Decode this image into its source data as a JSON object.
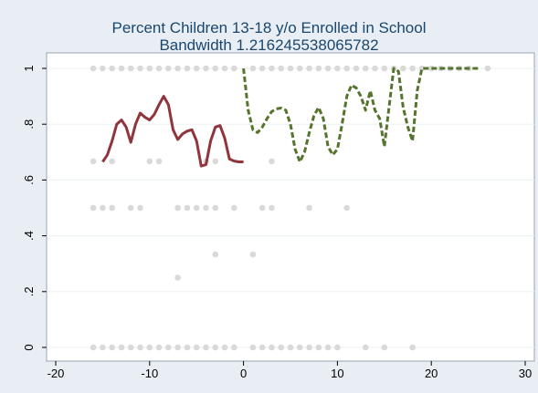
{
  "chart_data": {
    "type": "scatter",
    "title": "Percent Children 13-18 y/o Enrolled in School",
    "subtitle": "Bandwidth 1.216245538065782",
    "xlabel": "",
    "ylabel": "",
    "xlim": [
      -20,
      30
    ],
    "ylim": [
      0,
      1
    ],
    "xticks": [
      -20,
      -10,
      0,
      10,
      20,
      30
    ],
    "yticks": [
      0,
      0.2,
      0.4,
      0.6,
      0.8,
      1
    ],
    "xtick_labels": [
      "-20",
      "-10",
      "0",
      "10",
      "20",
      "30"
    ],
    "ytick_labels": [
      "0",
      ".2",
      ".4",
      ".6",
      ".8",
      "1"
    ],
    "grid": true,
    "legend": "none",
    "colors": {
      "background": "#e8eef3",
      "plot_area": "#ffffff",
      "grid": "#eaf2f3",
      "points": "#d9d9d9",
      "left_fit": "#90353b",
      "right_fit": "#55752f",
      "title": "#1a476f"
    },
    "series": [
      {
        "kind": "points",
        "points": [
          [
            -16,
            1
          ],
          [
            -15,
            1
          ],
          [
            -14,
            1
          ],
          [
            -13,
            1
          ],
          [
            -12,
            1
          ],
          [
            -11,
            1
          ],
          [
            -10,
            1
          ],
          [
            -9,
            1
          ],
          [
            -8,
            1
          ],
          [
            -7,
            1
          ],
          [
            -6,
            1
          ],
          [
            -5,
            1
          ],
          [
            -4,
            1
          ],
          [
            -3,
            1
          ],
          [
            -2,
            1
          ],
          [
            -1,
            1
          ],
          [
            1,
            1
          ],
          [
            2,
            1
          ],
          [
            3,
            1
          ],
          [
            4,
            1
          ],
          [
            5,
            1
          ],
          [
            6,
            1
          ],
          [
            7,
            1
          ],
          [
            8,
            1
          ],
          [
            9,
            1
          ],
          [
            10,
            1
          ],
          [
            11,
            1
          ],
          [
            12,
            1
          ],
          [
            13,
            1
          ],
          [
            14,
            1
          ],
          [
            15,
            1
          ],
          [
            16,
            1
          ],
          [
            17,
            1
          ],
          [
            18,
            1
          ],
          [
            19,
            1
          ],
          [
            20,
            1
          ],
          [
            21,
            1
          ],
          [
            22,
            1
          ],
          [
            23,
            1
          ],
          [
            24,
            1
          ],
          [
            26,
            1
          ],
          [
            -16,
            0.667
          ],
          [
            -14,
            0.667
          ],
          [
            -10,
            0.667
          ],
          [
            -9,
            0.667
          ],
          [
            -4,
            0.667
          ],
          [
            -3,
            0.667
          ],
          [
            3,
            0.667
          ],
          [
            -16,
            0.5
          ],
          [
            -15,
            0.5
          ],
          [
            -14,
            0.5
          ],
          [
            -12,
            0.5
          ],
          [
            -11,
            0.5
          ],
          [
            -7,
            0.5
          ],
          [
            -6,
            0.5
          ],
          [
            -5,
            0.5
          ],
          [
            -4,
            0.5
          ],
          [
            -3,
            0.5
          ],
          [
            -1,
            0.5
          ],
          [
            2,
            0.5
          ],
          [
            3,
            0.5
          ],
          [
            7,
            0.5
          ],
          [
            11,
            0.5
          ],
          [
            -3,
            0.333
          ],
          [
            1,
            0.333
          ],
          [
            -7,
            0.25
          ],
          [
            -16,
            0
          ],
          [
            -15,
            0
          ],
          [
            -14,
            0
          ],
          [
            -13,
            0
          ],
          [
            -12,
            0
          ],
          [
            -11,
            0
          ],
          [
            -10,
            0
          ],
          [
            -9,
            0
          ],
          [
            -8,
            0
          ],
          [
            -7,
            0
          ],
          [
            -6,
            0
          ],
          [
            -5,
            0
          ],
          [
            -4,
            0
          ],
          [
            -3,
            0
          ],
          [
            -2,
            0
          ],
          [
            -1,
            0
          ],
          [
            1,
            0
          ],
          [
            2,
            0
          ],
          [
            3,
            0
          ],
          [
            4,
            0
          ],
          [
            5,
            0
          ],
          [
            6,
            0
          ],
          [
            7,
            0
          ],
          [
            8,
            0
          ],
          [
            9,
            0
          ],
          [
            10,
            0
          ],
          [
            13,
            0
          ],
          [
            15,
            0
          ],
          [
            18,
            0
          ]
        ]
      },
      {
        "kind": "line",
        "style": "solid",
        "x": [
          -15,
          -14.5,
          -14,
          -13.5,
          -13,
          -12.5,
          -12,
          -11.5,
          -11,
          -10.5,
          -10,
          -9.5,
          -9,
          -8.5,
          -8,
          -7.5,
          -7,
          -6.5,
          -6,
          -5.5,
          -5,
          -4.5,
          -4,
          -3.5,
          -3,
          -2.5,
          -2,
          -1.5,
          -1,
          -0.5,
          0
        ],
        "y": [
          0.665,
          0.69,
          0.74,
          0.8,
          0.815,
          0.79,
          0.735,
          0.8,
          0.84,
          0.825,
          0.815,
          0.835,
          0.87,
          0.9,
          0.87,
          0.78,
          0.745,
          0.765,
          0.775,
          0.78,
          0.74,
          0.65,
          0.655,
          0.74,
          0.79,
          0.795,
          0.75,
          0.675,
          0.668,
          0.665,
          0.665
        ]
      },
      {
        "kind": "line",
        "style": "dashed",
        "x": [
          0,
          0.5,
          1,
          1.5,
          2,
          2.5,
          3,
          3.5,
          4,
          4.5,
          5,
          5.5,
          6,
          6.5,
          7,
          7.5,
          8,
          8.5,
          9,
          9.5,
          10,
          10.5,
          11,
          11.5,
          12,
          12.5,
          13,
          13.5,
          14,
          14.5,
          15,
          15.5,
          16,
          16.5,
          17,
          17.5,
          18,
          18.5,
          19,
          20,
          21,
          22,
          23,
          24,
          25
        ],
        "y": [
          1,
          0.85,
          0.78,
          0.77,
          0.79,
          0.82,
          0.845,
          0.855,
          0.858,
          0.85,
          0.8,
          0.71,
          0.665,
          0.7,
          0.77,
          0.83,
          0.86,
          0.82,
          0.72,
          0.69,
          0.71,
          0.8,
          0.9,
          0.94,
          0.93,
          0.9,
          0.85,
          0.92,
          0.85,
          0.82,
          0.72,
          0.86,
          1,
          0.99,
          0.86,
          0.79,
          0.74,
          0.92,
          1,
          1,
          1,
          1,
          1,
          1,
          1
        ]
      }
    ]
  }
}
